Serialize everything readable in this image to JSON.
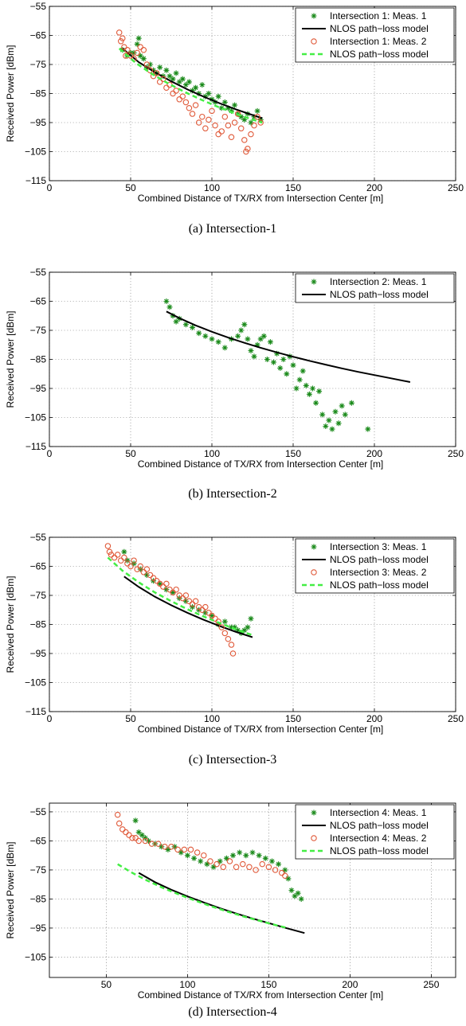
{
  "figures": [
    {
      "caption": "(a)  Intersection-1",
      "chart_data": {
        "type": "scatter",
        "xlabel": "Combined Distance of TX/RX from Intersection Center [m]",
        "ylabel": "Received Power [dBm]",
        "xlim": [
          0,
          250
        ],
        "ylim": [
          -115,
          -55
        ],
        "xticks": [
          "0",
          "50",
          "100",
          "150",
          "200",
          "250"
        ],
        "yticks": [
          "-115",
          "-105",
          "-95",
          "-85",
          "-75",
          "-65",
          "-55"
        ],
        "grid": true,
        "legend_position": "top-right",
        "series": [
          {
            "name": "Intersection 1: Meas. 1",
            "style": "star",
            "color": "#1a8a1a",
            "x": [
              45,
              48,
              50,
              52,
              54,
              55,
              56,
              58,
              60,
              62,
              64,
              66,
              68,
              70,
              72,
              74,
              76,
              78,
              80,
              82,
              84,
              86,
              88,
              90,
              92,
              94,
              96,
              98,
              100,
              102,
              104,
              106,
              108,
              110,
              112,
              114,
              116,
              118,
              120,
              122,
              124,
              126,
              128,
              130
            ],
            "y": [
              -70,
              -72,
              -71,
              -71,
              -68,
              -66,
              -72,
              -73,
              -76,
              -75,
              -77,
              -78,
              -76,
              -79,
              -77,
              -79,
              -80,
              -78,
              -81,
              -80,
              -82,
              -81,
              -84,
              -83,
              -85,
              -82,
              -86,
              -85,
              -87,
              -88,
              -86,
              -90,
              -88,
              -90,
              -91,
              -89,
              -92,
              -93,
              -94,
              -92,
              -95,
              -93,
              -91,
              -94
            ]
          },
          {
            "name": "NLOS path−loss model",
            "style": "solid",
            "color": "#000000",
            "x": [
              45,
              55,
              65,
              75,
              85,
              95,
              105,
              115,
              125,
              131
            ],
            "y": [
              -69.5,
              -74.2,
              -77.7,
              -80.8,
              -83.6,
              -86.1,
              -88.4,
              -90.5,
              -92.4,
              -93.5
            ]
          },
          {
            "name": "Intersection 1: Meas. 2",
            "style": "circle",
            "color": "#e05a3a",
            "x": [
              43,
              44,
              45,
              46,
              47,
              48,
              50,
              52,
              54,
              56,
              58,
              60,
              62,
              64,
              66,
              68,
              70,
              72,
              74,
              76,
              78,
              80,
              82,
              84,
              86,
              88,
              90,
              92,
              94,
              96,
              98,
              100,
              102,
              104,
              106,
              108,
              110,
              112,
              114,
              116,
              118,
              120,
              121,
              122,
              124,
              126,
              128,
              130
            ],
            "y": [
              -64,
              -67,
              -66,
              -69,
              -72,
              -70,
              -72,
              -73,
              -71,
              -69,
              -70,
              -75,
              -77,
              -79,
              -78,
              -81,
              -80,
              -83,
              -82,
              -85,
              -84,
              -87,
              -86,
              -88,
              -90,
              -92,
              -89,
              -95,
              -93,
              -97,
              -94,
              -91,
              -96,
              -99,
              -98,
              -93,
              -96,
              -100,
              -95,
              -92,
              -97,
              -101,
              -105,
              -104,
              -99,
              -96,
              -93,
              -95
            ]
          },
          {
            "name": "NLOS path−loss model",
            "style": "dashed",
            "color": "#44ee44",
            "x": [
              43,
              53,
              63,
              73,
              83,
              93,
              103,
              113,
              123,
              131
            ],
            "y": [
              -69.5,
              -74.4,
              -78.2,
              -81.5,
              -84.4,
              -87.0,
              -89.4,
              -91.6,
              -93.6,
              -95.0
            ]
          }
        ]
      }
    },
    {
      "caption": "(b)  Intersection-2",
      "chart_data": {
        "type": "scatter",
        "xlabel": "Combined Distance of TX/RX from Intersection Center [m]",
        "ylabel": "Received Power [dBm]",
        "xlim": [
          0,
          250
        ],
        "ylim": [
          -115,
          -55
        ],
        "xticks": [
          "0",
          "50",
          "100",
          "150",
          "200",
          "250"
        ],
        "yticks": [
          "-115",
          "-105",
          "-95",
          "-85",
          "-75",
          "-65",
          "-55"
        ],
        "grid": true,
        "legend_position": "top-right",
        "series": [
          {
            "name": "Intersection 2: Meas. 1",
            "style": "star",
            "color": "#1a8a1a",
            "x": [
              72,
              74,
              76,
              78,
              80,
              84,
              88,
              92,
              96,
              100,
              104,
              108,
              112,
              116,
              118,
              120,
              122,
              124,
              126,
              128,
              130,
              132,
              134,
              136,
              138,
              140,
              142,
              144,
              146,
              148,
              150,
              152,
              154,
              156,
              158,
              160,
              162,
              164,
              166,
              168,
              170,
              172,
              174,
              176,
              178,
              180,
              182,
              186,
              196
            ],
            "y": [
              -65,
              -67,
              -70,
              -72,
              -71,
              -73,
              -74,
              -76,
              -77,
              -78,
              -79,
              -81,
              -78,
              -77,
              -75,
              -73,
              -78,
              -82,
              -84,
              -80,
              -78,
              -77,
              -85,
              -79,
              -86,
              -83,
              -88,
              -85,
              -90,
              -84,
              -87,
              -95,
              -92,
              -89,
              -94,
              -97,
              -95,
              -100,
              -96,
              -104,
              -108,
              -106,
              -109,
              -103,
              -107,
              -101,
              -104,
              -100,
              -109
            ]
          },
          {
            "name": "NLOS path−loss model",
            "style": "solid",
            "color": "#000000",
            "x": [
              72,
              80,
              90,
              100,
              110,
              120,
              130,
              140,
              150,
              160,
              170,
              180,
              190,
              200,
              210,
              222
            ],
            "y": [
              -68.5,
              -70.8,
              -73.3,
              -75.5,
              -77.5,
              -79.3,
              -81.0,
              -82.6,
              -84.1,
              -85.5,
              -86.8,
              -88.1,
              -89.3,
              -90.4,
              -91.5,
              -92.8
            ]
          }
        ]
      }
    },
    {
      "caption": "(c)  Intersection-3",
      "chart_data": {
        "type": "scatter",
        "xlabel": "Combined Distance of TX/RX from Intersection Center [m]",
        "ylabel": "Received Power [dBm]",
        "xlim": [
          0,
          250
        ],
        "ylim": [
          -115,
          -55
        ],
        "xticks": [
          "0",
          "50",
          "100",
          "150",
          "200",
          "250"
        ],
        "yticks": [
          "-115",
          "-105",
          "-95",
          "-85",
          "-75",
          "-65",
          "-55"
        ],
        "grid": true,
        "legend_position": "top-right",
        "series": [
          {
            "name": "Intersection 3: Meas. 1",
            "style": "star",
            "color": "#1a8a1a",
            "x": [
              46,
              48,
              52,
              56,
              60,
              64,
              68,
              72,
              76,
              80,
              84,
              88,
              92,
              96,
              100,
              104,
              108,
              112,
              114,
              116,
              118,
              120,
              122,
              124
            ],
            "y": [
              -60,
              -63,
              -64,
              -66,
              -68,
              -70,
              -71,
              -73,
              -74,
              -76,
              -77,
              -79,
              -80,
              -81,
              -82,
              -85,
              -84,
              -86,
              -86,
              -87,
              -88,
              -87,
              -86,
              -83
            ]
          },
          {
            "name": "NLOS path−loss model",
            "style": "solid",
            "color": "#000000",
            "x": [
              46,
              55,
              65,
              75,
              85,
              95,
              105,
              115,
              125
            ],
            "y": [
              -68.5,
              -72.1,
              -75.5,
              -78.4,
              -81.0,
              -83.4,
              -85.6,
              -87.6,
              -89.4
            ]
          },
          {
            "name": "Intersection 3: Meas. 2",
            "style": "circle",
            "color": "#e05a3a",
            "x": [
              36,
              37,
              38,
              40,
              42,
              44,
              46,
              48,
              50,
              52,
              54,
              56,
              58,
              60,
              62,
              64,
              66,
              68,
              70,
              72,
              74,
              76,
              78,
              80,
              82,
              84,
              86,
              88,
              90,
              92,
              94,
              96,
              98,
              100,
              102,
              104,
              106,
              108,
              110,
              112,
              113
            ],
            "y": [
              -58,
              -60,
              -61,
              -62,
              -61,
              -63,
              -62,
              -64,
              -65,
              -63,
              -66,
              -65,
              -67,
              -66,
              -68,
              -69,
              -70,
              -71,
              -72,
              -71,
              -73,
              -74,
              -73,
              -75,
              -76,
              -75,
              -77,
              -78,
              -77,
              -79,
              -80,
              -79,
              -81,
              -82,
              -83,
              -84,
              -86,
              -88,
              -90,
              -92,
              -95
            ]
          },
          {
            "name": "NLOS path−loss model",
            "style": "dashed",
            "color": "#44ee44",
            "x": [
              36,
              45,
              55,
              65,
              75,
              85,
              95,
              105,
              115,
              125
            ],
            "y": [
              -62.0,
              -66.5,
              -70.5,
              -74.0,
              -77.0,
              -79.8,
              -82.3,
              -84.6,
              -86.7,
              -88.7
            ]
          }
        ]
      }
    },
    {
      "caption": "(d)  Intersection-4",
      "chart_data": {
        "type": "scatter",
        "xlabel": "Combined Distance of TX/RX from Intersection Center [m]",
        "ylabel": "Received Power [dBm]",
        "xlim": [
          15,
          265
        ],
        "ylim": [
          -112,
          -52
        ],
        "xticks": [
          "50",
          "100",
          "150",
          "200",
          "250"
        ],
        "yticks": [
          "-105",
          "-95",
          "-85",
          "-75",
          "-65",
          "-55"
        ],
        "grid": true,
        "legend_position": "top-right",
        "series": [
          {
            "name": "Intersection 4: Meas. 1",
            "style": "star",
            "color": "#1a8a1a",
            "x": [
              68,
              70,
              72,
              74,
              76,
              80,
              84,
              88,
              92,
              96,
              100,
              104,
              108,
              112,
              116,
              120,
              124,
              128,
              132,
              136,
              140,
              144,
              148,
              152,
              156,
              160,
              162,
              164,
              166,
              168,
              170
            ],
            "y": [
              -58,
              -62,
              -63,
              -64,
              -65,
              -66,
              -67,
              -68,
              -67,
              -69,
              -70,
              -71,
              -72,
              -73,
              -74,
              -72,
              -71,
              -70,
              -69,
              -70,
              -69,
              -70,
              -71,
              -72,
              -73,
              -75,
              -78,
              -82,
              -84,
              -83,
              -85
            ]
          },
          {
            "name": "NLOS path−loss model",
            "style": "solid",
            "color": "#000000",
            "x": [
              70,
              80,
              90,
              100,
              110,
              120,
              130,
              140,
              150,
              160,
              172
            ],
            "y": [
              -76.0,
              -79.2,
              -81.8,
              -84.1,
              -86.2,
              -88.2,
              -90.0,
              -91.7,
              -93.3,
              -94.9,
              -96.7
            ]
          },
          {
            "name": "Intersection 4: Meas. 2",
            "style": "circle",
            "color": "#e05a3a",
            "x": [
              57,
              58,
              60,
              62,
              64,
              66,
              68,
              70,
              74,
              78,
              82,
              86,
              90,
              94,
              98,
              102,
              106,
              110,
              114,
              118,
              122,
              126,
              130,
              134,
              138,
              142,
              146,
              150,
              154,
              158,
              160
            ],
            "y": [
              -56,
              -59,
              -61,
              -62,
              -63,
              -64,
              -64,
              -65,
              -65,
              -66,
              -66,
              -67,
              -67,
              -68,
              -68,
              -68,
              -69,
              -70,
              -72,
              -73,
              -74,
              -72,
              -74,
              -73,
              -74,
              -75,
              -73,
              -74,
              -75,
              -76,
              -77
            ]
          },
          {
            "name": "NLOS path−loss model",
            "style": "dashed",
            "color": "#44ee44",
            "x": [
              57,
              65,
              75,
              85,
              95,
              105,
              115,
              125,
              135,
              145,
              155,
              162
            ],
            "y": [
              -73.0,
              -75.7,
              -78.6,
              -81.2,
              -83.5,
              -85.6,
              -87.6,
              -89.4,
              -91.1,
              -92.6,
              -94.1,
              -95.0
            ]
          }
        ]
      }
    }
  ]
}
